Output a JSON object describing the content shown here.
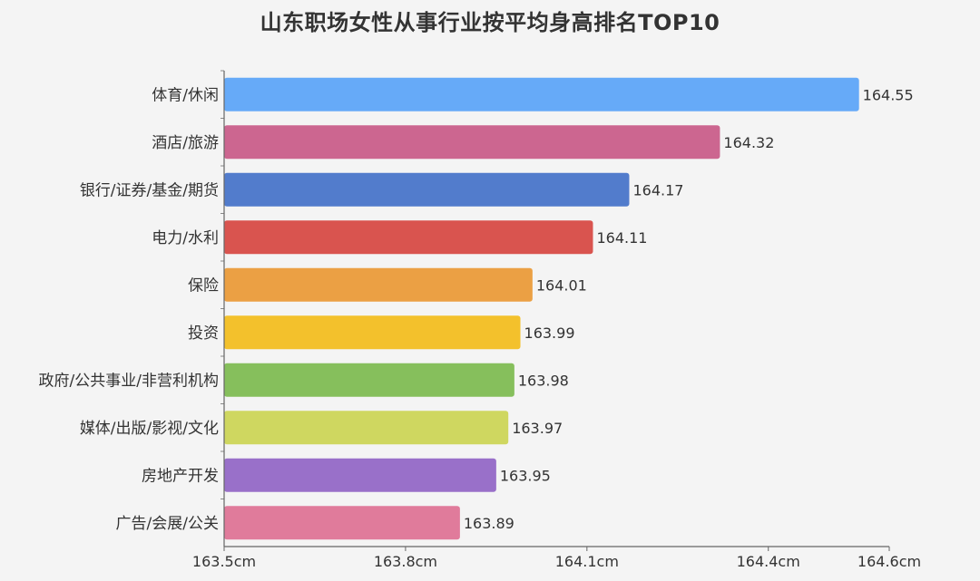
{
  "chart_data": {
    "type": "bar",
    "orientation": "horizontal",
    "title": "山东职场女性从事行业按平均身高排名TOP10",
    "categories": [
      "体育/休闲",
      "酒店/旅游",
      "银行/证券/基金/期货",
      "电力/水利",
      "保险",
      "投资",
      "政府/公共事业/非营利机构",
      "媒体/出版/影视/文化",
      "房地产开发",
      "广告/会展/公关"
    ],
    "values": [
      164.55,
      164.32,
      164.17,
      164.11,
      164.01,
      163.99,
      163.98,
      163.97,
      163.95,
      163.89
    ],
    "value_labels": [
      "164.55",
      "164.32",
      "164.17",
      "164.11",
      "164.01",
      "163.99",
      "163.98",
      "163.97",
      "163.95",
      "163.89"
    ],
    "xlim": [
      163.5,
      164.6
    ],
    "x_ticks": [
      163.5,
      163.8,
      164.1,
      164.4,
      164.6
    ],
    "x_tick_labels": [
      "163.5cm",
      "163.8cm",
      "164.1cm",
      "164.4cm",
      "164.6cm"
    ],
    "bar_colors": [
      "#66aaf8",
      "#cc6690",
      "#527ccc",
      "#d9544f",
      "#eba044",
      "#f3c12c",
      "#86bf5c",
      "#cfd760",
      "#9970c9",
      "#e07b9b"
    ],
    "grid": false,
    "legend": "none"
  }
}
